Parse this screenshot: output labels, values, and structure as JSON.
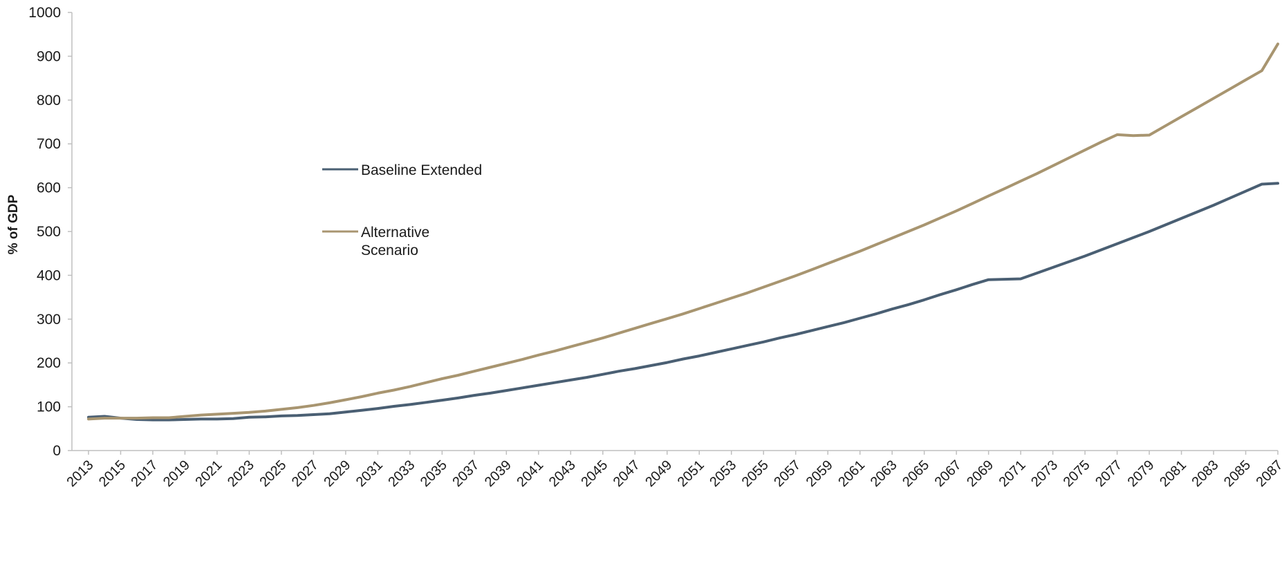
{
  "chart_data": {
    "type": "line",
    "title": "",
    "xlabel": "",
    "ylabel": "% of GDP",
    "ylim": [
      0,
      1000
    ],
    "y_ticks": [
      "0",
      "100",
      "200",
      "300",
      "400",
      "500",
      "600",
      "700",
      "800",
      "900",
      "1000"
    ],
    "x_tick_labels": [
      "2013",
      "2015",
      "2017",
      "2019",
      "2021",
      "2023",
      "2025",
      "2027",
      "2029",
      "2031",
      "2033",
      "2035",
      "2037",
      "2039",
      "2041",
      "2043",
      "2045",
      "2047",
      "2049",
      "2051",
      "2053",
      "2055",
      "2057",
      "2059",
      "2061",
      "2063",
      "2065",
      "2067",
      "2069",
      "2071",
      "2073",
      "2075",
      "2077",
      "2079",
      "2081",
      "2083",
      "2085",
      "2087"
    ],
    "grid": false,
    "legend_position": "upper-left",
    "x": [
      2013,
      2014,
      2015,
      2016,
      2017,
      2018,
      2019,
      2020,
      2021,
      2022,
      2023,
      2024,
      2025,
      2026,
      2027,
      2028,
      2029,
      2030,
      2031,
      2032,
      2033,
      2034,
      2035,
      2036,
      2037,
      2038,
      2039,
      2040,
      2041,
      2042,
      2043,
      2044,
      2045,
      2046,
      2047,
      2048,
      2049,
      2050,
      2051,
      2052,
      2053,
      2054,
      2055,
      2056,
      2057,
      2058,
      2059,
      2060,
      2061,
      2062,
      2063,
      2064,
      2065,
      2066,
      2067,
      2068,
      2069,
      2070,
      2071,
      2072,
      2073,
      2074,
      2075,
      2076,
      2077,
      2078,
      2079,
      2080,
      2081,
      2082,
      2083,
      2084,
      2085,
      2086,
      2087
    ],
    "series": [
      {
        "name": "Baseline Extended",
        "color": "#4a5f73",
        "values": [
          76,
          78,
          74,
          71,
          70,
          70,
          71,
          72,
          72,
          73,
          76,
          77,
          79,
          80,
          82,
          84,
          88,
          92,
          96,
          101,
          105,
          110,
          115,
          120,
          126,
          131,
          137,
          143,
          149,
          155,
          161,
          167,
          174,
          181,
          187,
          194,
          201,
          209,
          216,
          224,
          232,
          240,
          248,
          257,
          265,
          274,
          283,
          292,
          302,
          312,
          323,
          333,
          344,
          356,
          367,
          379,
          390,
          391,
          392,
          405,
          418,
          431,
          444,
          458,
          472,
          486,
          500,
          515,
          530,
          545,
          560,
          576,
          592,
          608,
          610
        ]
      },
      {
        "name": "Alternative Scenario",
        "color": "#a89570",
        "values": [
          72,
          74,
          74,
          74,
          75,
          75,
          78,
          81,
          83,
          85,
          87,
          90,
          94,
          98,
          103,
          109,
          116,
          123,
          131,
          138,
          146,
          155,
          164,
          172,
          181,
          190,
          199,
          208,
          218,
          227,
          237,
          247,
          257,
          268,
          279,
          290,
          301,
          312,
          324,
          336,
          348,
          360,
          373,
          386,
          399,
          413,
          427,
          441,
          455,
          470,
          485,
          500,
          515,
          531,
          547,
          564,
          581,
          598,
          615,
          632,
          650,
          668,
          686,
          704,
          721,
          719,
          720,
          741,
          762,
          783,
          804,
          825,
          846,
          867,
          928
        ]
      }
    ]
  }
}
